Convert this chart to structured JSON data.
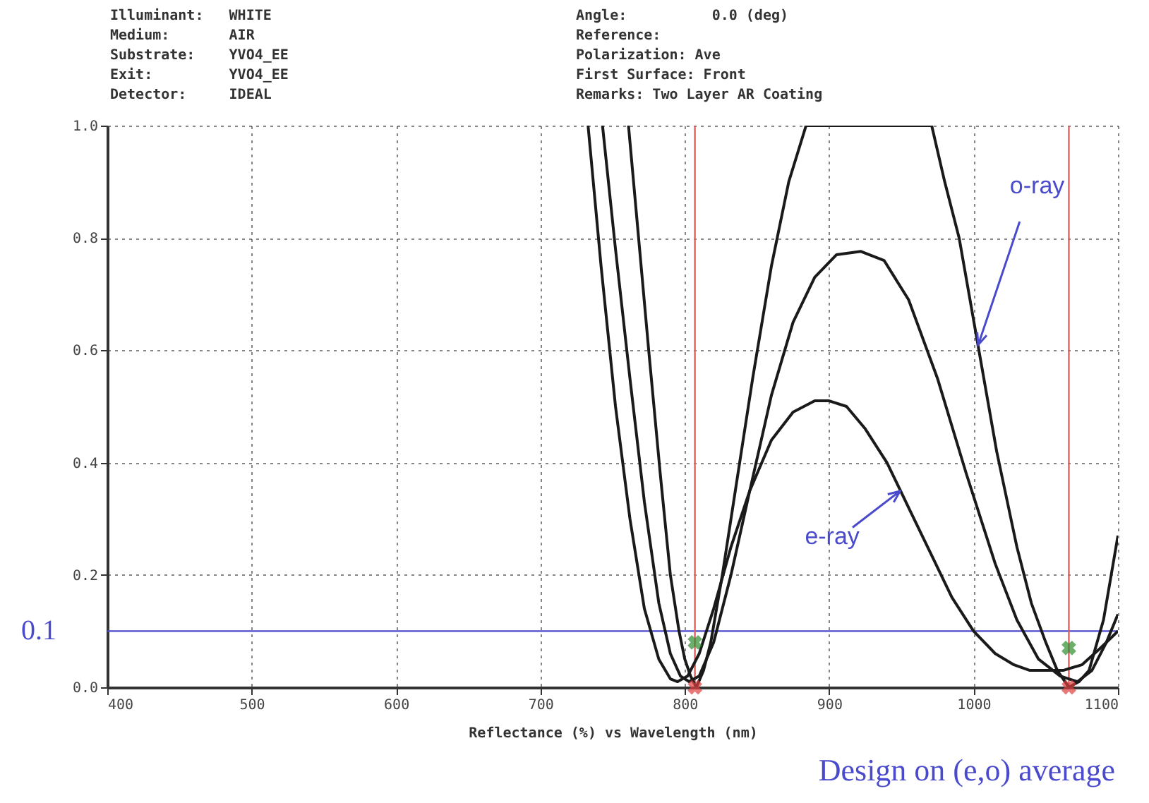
{
  "chart_data": {
    "type": "line",
    "xlabel": "Reflectance (%)  vs  Wavelength (nm)",
    "annotations": [
      "Illuminant:   WHITE",
      "Medium:       AIR",
      "Substrate:    YVO4_EE",
      "Exit:         YVO4_EE",
      "Detector:     IDEAL",
      "Angle:          0.0 (deg)",
      "Reference:",
      "Polarization: Ave",
      "First Surface: Front",
      "Remarks: Two Layer AR Coating",
      {
        "text": "o-ray",
        "x": 1003,
        "y": 0.61
      },
      {
        "text": "e-ray",
        "x": 949,
        "y": 0.35
      },
      "Design on (e,o) average"
    ],
    "xlim": [
      400,
      1100
    ],
    "xticks": [
      400,
      500,
      600,
      700,
      800,
      900,
      1000,
      1100
    ],
    "ylim": [
      0,
      1
    ],
    "yticks": [
      {
        "value": 0,
        "label": "0.0"
      },
      {
        "value": 0.2,
        "label": "0.2"
      },
      {
        "value": 0.4,
        "label": "0.4"
      },
      {
        "value": 0.6,
        "label": "0.6"
      },
      {
        "value": 0.8,
        "label": "0.8"
      },
      {
        "value": 1,
        "label": "1.0"
      }
    ],
    "grid": true,
    "line_style": "solid",
    "series": [
      {
        "color": "#1a1a1a",
        "x": [
          761,
          768,
          775,
          783,
          790,
          796,
          800,
          804,
          808,
          813,
          818,
          826,
          835,
          847,
          860,
          872,
          884,
          971,
          980,
          990,
          1003,
          1016,
          1030,
          1040,
          1050,
          1058,
          1066,
          1073,
          1080,
          1090,
          1100
        ],
        "values": [
          1.0,
          0.8,
          0.6,
          0.38,
          0.2,
          0.1,
          0.05,
          0.02,
          0.0,
          0.03,
          0.08,
          0.2,
          0.35,
          0.55,
          0.75,
          0.9,
          1.0,
          1.0,
          0.9,
          0.8,
          0.61,
          0.42,
          0.25,
          0.15,
          0.08,
          0.03,
          0.0,
          0.01,
          0.03,
          0.12,
          0.27
        ]
      },
      {
        "color": "#1a1a1a",
        "x": [
          743,
          752,
          762,
          772,
          782,
          790,
          797,
          803,
          810,
          820,
          832,
          845,
          860,
          875,
          890,
          905,
          922,
          938,
          955,
          975,
          995,
          1015,
          1030,
          1045,
          1060,
          1072,
          1082,
          1092,
          1100
        ],
        "values": [
          1.0,
          0.78,
          0.55,
          0.33,
          0.15,
          0.06,
          0.02,
          0.01,
          0.02,
          0.08,
          0.2,
          0.35,
          0.52,
          0.65,
          0.73,
          0.77,
          0.776,
          0.76,
          0.69,
          0.55,
          0.38,
          0.22,
          0.12,
          0.05,
          0.02,
          0.01,
          0.03,
          0.08,
          0.13
        ]
      },
      {
        "color": "#1a1a1a",
        "x": [
          733,
          742,
          752,
          762,
          772,
          782,
          790,
          795,
          802,
          810,
          820,
          832,
          845,
          860,
          875,
          890,
          900,
          912,
          925,
          940,
          955,
          970,
          985,
          1000,
          1015,
          1028,
          1039,
          1050,
          1062,
          1075,
          1088,
          1100
        ],
        "values": [
          1.0,
          0.75,
          0.5,
          0.3,
          0.14,
          0.05,
          0.015,
          0.01,
          0.02,
          0.06,
          0.14,
          0.25,
          0.35,
          0.44,
          0.49,
          0.51,
          0.51,
          0.5,
          0.46,
          0.4,
          0.32,
          0.24,
          0.16,
          0.1,
          0.06,
          0.04,
          0.03,
          0.03,
          0.03,
          0.04,
          0.07,
          0.1
        ]
      },
      {
        "type": "scatter",
        "marker": "cross",
        "color": "#e04040",
        "x": [
          807,
          1066
        ],
        "values": [
          0,
          0
        ]
      },
      {
        "type": "scatter",
        "marker": "cross",
        "color": "#2e8b2e",
        "x": [
          807,
          1066
        ],
        "values": [
          0.08,
          0.07
        ]
      }
    ],
    "ref_lines": [
      {
        "axis": "y",
        "value": 0.1,
        "label": "0.1",
        "color": "#4a4acc"
      },
      {
        "axis": "x",
        "value": 807,
        "color": "#e06060"
      },
      {
        "axis": "x",
        "value": 1066,
        "color": "#e06060"
      }
    ]
  }
}
